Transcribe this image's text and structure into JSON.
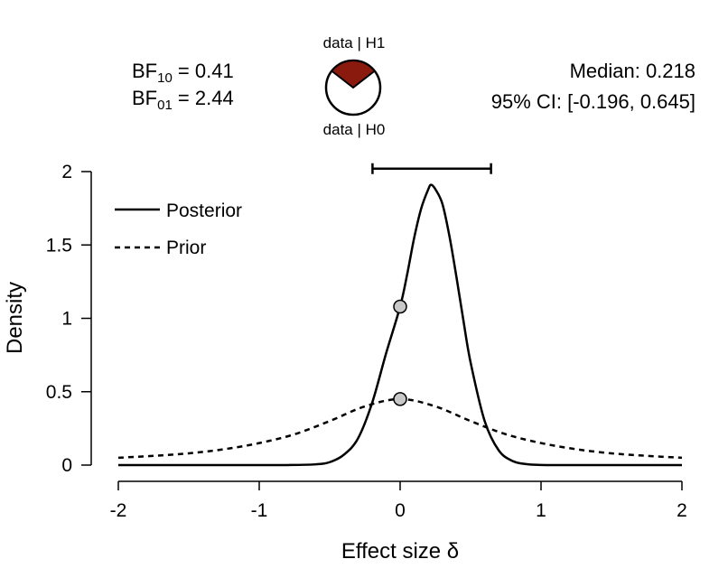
{
  "bayes_factors": {
    "bf10_prefix": "BF",
    "bf10_sub": "10",
    "bf10_value": " = 0.41",
    "bf01_prefix": "BF",
    "bf01_sub": "01",
    "bf01_value": " = 2.44"
  },
  "pie": {
    "label_top": "data | H1",
    "label_bottom": "data | H0",
    "h1_fraction": 0.29,
    "h1_color": "#8b1a0e",
    "h0_color": "#ffffff"
  },
  "summary": {
    "median_text": "Median: 0.218",
    "ci_text": "95% CI: [-0.196, 0.645]"
  },
  "chart_data": {
    "type": "line",
    "xlabel": "Effect size δ",
    "ylabel": "Density",
    "xlim": [
      -2,
      2
    ],
    "ylim": [
      0,
      2
    ],
    "xticks": [
      "-2",
      "-1",
      "0",
      "1",
      "2"
    ],
    "yticks": [
      "0",
      "0.5",
      "1",
      "1.5",
      "2"
    ],
    "grid": false,
    "legend_position": "top-left",
    "series": [
      {
        "name": "Posterior",
        "style": "solid",
        "x": [
          -2,
          -1.5,
          -1,
          -0.8,
          -0.6,
          -0.5,
          -0.4,
          -0.3,
          -0.2,
          -0.1,
          0,
          0.05,
          0.1,
          0.15,
          0.2,
          0.22,
          0.25,
          0.3,
          0.35,
          0.4,
          0.45,
          0.5,
          0.6,
          0.7,
          0.8,
          0.9,
          1,
          1.2,
          1.5,
          2
        ],
        "y": [
          0,
          0,
          0,
          0.0002,
          0.005,
          0.02,
          0.07,
          0.18,
          0.42,
          0.76,
          1.08,
          1.3,
          1.55,
          1.75,
          1.88,
          1.91,
          1.88,
          1.78,
          1.56,
          1.28,
          0.98,
          0.7,
          0.3,
          0.1,
          0.027,
          0.006,
          0.001,
          0,
          0,
          0
        ]
      },
      {
        "name": "Prior",
        "style": "dashed",
        "x": [
          -2,
          -1.75,
          -1.5,
          -1.25,
          -1,
          -0.75,
          -0.5,
          -0.25,
          0,
          0.25,
          0.5,
          0.75,
          1,
          1.25,
          1.5,
          1.75,
          2
        ],
        "y": [
          0.05,
          0.063,
          0.08,
          0.108,
          0.15,
          0.21,
          0.3,
          0.4,
          0.45,
          0.4,
          0.3,
          0.21,
          0.15,
          0.108,
          0.08,
          0.063,
          0.05
        ]
      }
    ],
    "points": [
      {
        "x": 0,
        "y": 1.08,
        "series": "Posterior"
      },
      {
        "x": 0,
        "y": 0.45,
        "series": "Prior"
      }
    ],
    "credible_interval": {
      "lower": -0.196,
      "upper": 0.645,
      "y": 2.02
    },
    "point_color": "#c8c8c8"
  }
}
